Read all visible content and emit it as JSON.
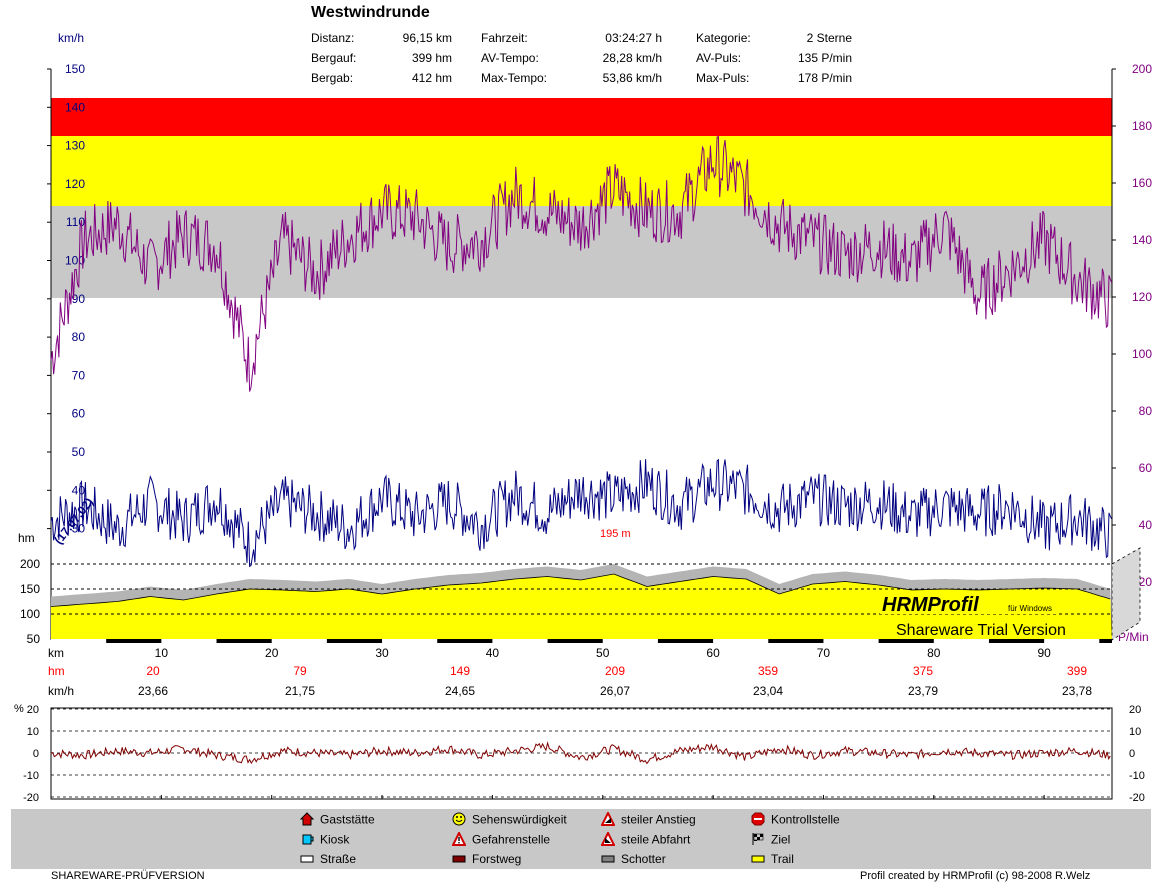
{
  "title": "Westwindrunde",
  "stats": [
    {
      "label": "Distanz:",
      "value": "96,15 km"
    },
    {
      "label": "Bergauf:",
      "value": "399 hm"
    },
    {
      "label": "Bergab:",
      "value": "412 hm"
    },
    {
      "label": "Fahrzeit:",
      "value": "03:24:27 h"
    },
    {
      "label": "AV-Tempo:",
      "value": "28,28 km/h"
    },
    {
      "label": "Max-Tempo:",
      "value": "53,86 km/h"
    },
    {
      "label": "Kategorie:",
      "value": "2 Sterne"
    },
    {
      "label": "AV-Puls:",
      "value": "135 P/min"
    },
    {
      "label": "Max-Puls:",
      "value": "178 P/min"
    }
  ],
  "axes": {
    "speed_unit": "km/h",
    "speed_ticks": [
      "150",
      "140",
      "130",
      "120",
      "110",
      "100",
      "90",
      "80",
      "70",
      "60",
      "50",
      "40",
      "30"
    ],
    "pulse_unit": "P/Min",
    "pulse_ticks": [
      "200",
      "180",
      "160",
      "140",
      "120",
      "100",
      "80",
      "60",
      "40",
      "20"
    ],
    "height_unit": "hm",
    "height_ticks": [
      "200",
      "150",
      "100",
      "50"
    ],
    "km_unit": "km",
    "km_ticks": [
      "10",
      "20",
      "30",
      "40",
      "50",
      "60",
      "70",
      "80",
      "90"
    ],
    "grade_unit": "%",
    "grade_ticks_left": [
      "20",
      "10",
      "0",
      "-10",
      "-20"
    ],
    "grade_ticks_right": [
      "20",
      "10",
      "0",
      "-10",
      "-20"
    ]
  },
  "summary_rows": {
    "hm_label": "hm",
    "hm_values": [
      "20",
      "79",
      "149",
      "209",
      "359",
      "375",
      "399"
    ],
    "kmh_label": "km/h",
    "kmh_values": [
      "23,66",
      "21,75",
      "24,65",
      "26,07",
      "23,04",
      "23,79",
      "23,78"
    ]
  },
  "annotations": {
    "start_label": "(17.07.02)",
    "height_marker": "195 m",
    "watermark_brand": "HRMProfil",
    "watermark_sub": "für Windows",
    "watermark_trial": "Shareware Trial  Version"
  },
  "colors": {
    "zone_red": "#ff0000",
    "zone_yellow": "#ffff00",
    "zone_gray": "#c8c8c8",
    "pulse_line": "#800080",
    "speed_line": "#000080",
    "grade_red": "#800000",
    "grade_blue": "#0000ff",
    "trail": "#ffff00",
    "gravel": "#b4b4b4"
  },
  "legend": [
    {
      "icon": "gasthaus-icon",
      "label": "Gaststätte"
    },
    {
      "icon": "kiosk-icon",
      "label": "Kiosk"
    },
    {
      "icon": "strasse-swatch",
      "label": "Straße"
    },
    {
      "icon": "smiley-icon",
      "label": "Sehenswürdigkeit"
    },
    {
      "icon": "warning-icon",
      "label": "Gefahrenstelle"
    },
    {
      "icon": "forstweg-swatch",
      "label": "Forstweg"
    },
    {
      "icon": "steep-up-icon",
      "label": "steiler Anstieg"
    },
    {
      "icon": "steep-down-icon",
      "label": "steile Abfahrt"
    },
    {
      "icon": "schotter-swatch",
      "label": "Schotter"
    },
    {
      "icon": "stop-icon",
      "label": "Kontrollstelle"
    },
    {
      "icon": "finish-flag-icon",
      "label": "Ziel"
    },
    {
      "icon": "trail-swatch",
      "label": "Trail"
    }
  ],
  "footer": {
    "left": "SHAREWARE-PRÜFVERSION",
    "right": "Profil created by HRMProfil (c) 98-2008 R.Welz"
  },
  "chart_data": {
    "type": "line",
    "xlabel": "km",
    "xlim": [
      0,
      96.15
    ],
    "pulse_zones": [
      {
        "from": 120,
        "to": 150,
        "color": "gray"
      },
      {
        "from": 150,
        "to": 170,
        "color": "yellow"
      },
      {
        "from": 170,
        "to": 190,
        "color": "red"
      }
    ],
    "series": [
      {
        "ylim": [
          20,
          200
        ],
        "axis": "right",
        "x": [
          0,
          3,
          6,
          9,
          12,
          15,
          18,
          21,
          24,
          27,
          30,
          33,
          36,
          39,
          42,
          45,
          48,
          51,
          54,
          57,
          60,
          63,
          66,
          69,
          72,
          75,
          78,
          81,
          84,
          87,
          90,
          93,
          96
        ],
        "values": [
          98,
          140,
          146,
          130,
          142,
          138,
          96,
          140,
          128,
          141,
          150,
          148,
          138,
          140,
          156,
          150,
          145,
          158,
          150,
          150,
          168,
          158,
          145,
          140,
          135,
          138,
          132,
          145,
          120,
          130,
          140,
          126,
          118
        ]
      },
      {
        "ylim": [
          20,
          150
        ],
        "axis": "left",
        "x": [
          0,
          3,
          6,
          9,
          12,
          15,
          18,
          21,
          24,
          27,
          30,
          33,
          36,
          39,
          42,
          45,
          48,
          51,
          54,
          57,
          60,
          63,
          66,
          69,
          72,
          75,
          78,
          81,
          84,
          87,
          90,
          93,
          96
        ],
        "values": [
          32,
          36,
          30,
          37,
          32,
          38,
          26,
          37,
          34,
          30,
          38,
          33,
          37,
          31,
          39,
          34,
          40,
          38,
          42,
          36,
          42,
          40,
          35,
          38,
          36,
          37,
          33,
          36,
          34,
          36,
          30,
          33,
          28
        ]
      },
      {
        "ylim": [
          50,
          250
        ],
        "axis": "height",
        "x": [
          0,
          3,
          6,
          9,
          12,
          15,
          18,
          21,
          24,
          27,
          30,
          33,
          36,
          39,
          42,
          45,
          48,
          51,
          54,
          57,
          60,
          63,
          66,
          69,
          72,
          75,
          78,
          81,
          84,
          87,
          90,
          93,
          96
        ],
        "values": [
          115,
          120,
          125,
          135,
          128,
          140,
          150,
          148,
          145,
          150,
          140,
          150,
          158,
          162,
          170,
          175,
          168,
          180,
          155,
          165,
          175,
          170,
          140,
          160,
          165,
          158,
          148,
          150,
          148,
          150,
          152,
          150,
          130
        ]
      },
      {
        "ylim": [
          -20,
          20
        ],
        "axis": "grade",
        "x": [
          0,
          3,
          6,
          9,
          12,
          15,
          18,
          21,
          24,
          27,
          30,
          33,
          36,
          39,
          42,
          45,
          48,
          51,
          54,
          57,
          60,
          63,
          66,
          69,
          72,
          75,
          78,
          81,
          84,
          87,
          90,
          93,
          96
        ],
        "values": [
          0,
          -1,
          1,
          0,
          2,
          -1,
          -3,
          1,
          0,
          -1,
          1,
          0,
          2,
          -1,
          1,
          3,
          -2,
          2,
          -3,
          1,
          3,
          -2,
          2,
          -1,
          1,
          0,
          -1,
          1,
          0,
          -1,
          0,
          1,
          -1
        ]
      }
    ]
  }
}
